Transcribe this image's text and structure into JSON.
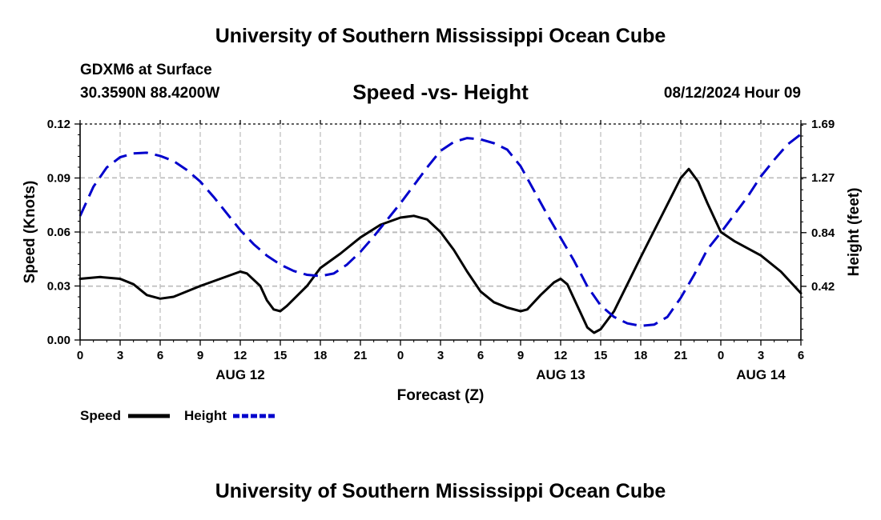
{
  "header": {
    "title": "University of Southern Mississippi Ocean Cube",
    "station": "GDXM6 at Surface",
    "coordinates": "30.3590N  88.4200W",
    "subtitle": "Speed -vs- Height",
    "datetime": "08/12/2024 Hour 09"
  },
  "footer": {
    "title": "University of Southern Mississippi Ocean Cube"
  },
  "chart_data": {
    "type": "line",
    "title": "Speed -vs- Height",
    "xlabel": "Forecast (Z)",
    "ylabel_left": "Speed (Knots)",
    "ylabel_right": "Height (feet)",
    "x_range_hours": [
      0,
      54
    ],
    "x_ticks": [
      {
        "h": 0,
        "label": "0"
      },
      {
        "h": 3,
        "label": "3"
      },
      {
        "h": 6,
        "label": "6"
      },
      {
        "h": 9,
        "label": "9"
      },
      {
        "h": 12,
        "label": "12"
      },
      {
        "h": 15,
        "label": "15"
      },
      {
        "h": 18,
        "label": "18"
      },
      {
        "h": 21,
        "label": "21"
      },
      {
        "h": 24,
        "label": "0"
      },
      {
        "h": 27,
        "label": "3"
      },
      {
        "h": 30,
        "label": "6"
      },
      {
        "h": 33,
        "label": "9"
      },
      {
        "h": 36,
        "label": "12"
      },
      {
        "h": 39,
        "label": "15"
      },
      {
        "h": 42,
        "label": "18"
      },
      {
        "h": 45,
        "label": "21"
      },
      {
        "h": 48,
        "label": "0"
      },
      {
        "h": 51,
        "label": "3"
      },
      {
        "h": 54,
        "label": "6"
      }
    ],
    "date_labels": [
      {
        "h": 12,
        "label": "AUG 12"
      },
      {
        "h": 36,
        "label": "AUG 13"
      },
      {
        "h": 51,
        "label": "AUG 14"
      }
    ],
    "ylim_left": [
      0,
      0.12
    ],
    "yticks_left": [
      "0.00",
      "0.03",
      "0.06",
      "0.09",
      "0.12"
    ],
    "ylim_right": [
      0,
      1.69
    ],
    "yticks_right": [
      "0.42",
      "0.84",
      "1.27",
      "1.69"
    ],
    "grid": true,
    "legend_position": "bottom-left",
    "series": [
      {
        "name": "Speed",
        "axis": "left",
        "color": "#000000",
        "style": "solid",
        "points": [
          [
            0,
            0.034
          ],
          [
            1.5,
            0.035
          ],
          [
            3,
            0.034
          ],
          [
            4,
            0.031
          ],
          [
            5,
            0.025
          ],
          [
            6,
            0.023
          ],
          [
            7,
            0.024
          ],
          [
            9,
            0.03
          ],
          [
            10.5,
            0.034
          ],
          [
            12,
            0.038
          ],
          [
            12.5,
            0.037
          ],
          [
            13.5,
            0.03
          ],
          [
            14,
            0.022
          ],
          [
            14.5,
            0.017
          ],
          [
            15,
            0.016
          ],
          [
            15.5,
            0.019
          ],
          [
            17,
            0.03
          ],
          [
            18,
            0.04
          ],
          [
            19.5,
            0.048
          ],
          [
            21,
            0.057
          ],
          [
            22.5,
            0.064
          ],
          [
            24,
            0.068
          ],
          [
            25,
            0.069
          ],
          [
            26,
            0.067
          ],
          [
            27,
            0.06
          ],
          [
            28,
            0.05
          ],
          [
            29,
            0.038
          ],
          [
            30,
            0.027
          ],
          [
            31,
            0.021
          ],
          [
            32,
            0.018
          ],
          [
            33,
            0.016
          ],
          [
            33.5,
            0.017
          ],
          [
            34.5,
            0.025
          ],
          [
            35.5,
            0.032
          ],
          [
            36,
            0.034
          ],
          [
            36.5,
            0.031
          ],
          [
            37.5,
            0.015
          ],
          [
            38,
            0.007
          ],
          [
            38.5,
            0.004
          ],
          [
            39,
            0.006
          ],
          [
            40,
            0.016
          ],
          [
            42,
            0.046
          ],
          [
            43.5,
            0.068
          ],
          [
            45,
            0.09
          ],
          [
            45.6,
            0.095
          ],
          [
            46.3,
            0.088
          ],
          [
            47,
            0.076
          ],
          [
            48,
            0.06
          ],
          [
            49,
            0.055
          ],
          [
            51,
            0.047
          ],
          [
            52.5,
            0.038
          ],
          [
            54,
            0.026
          ]
        ]
      },
      {
        "name": "Height",
        "axis": "right",
        "color": "#0000cc",
        "style": "dashed",
        "points": [
          [
            0,
            0.97
          ],
          [
            1,
            1.2
          ],
          [
            2,
            1.35
          ],
          [
            3,
            1.43
          ],
          [
            4,
            1.46
          ],
          [
            5,
            1.465
          ],
          [
            6,
            1.44
          ],
          [
            7,
            1.4
          ],
          [
            8,
            1.33
          ],
          [
            9,
            1.24
          ],
          [
            10,
            1.12
          ],
          [
            11,
            0.99
          ],
          [
            12,
            0.86
          ],
          [
            13,
            0.75
          ],
          [
            14,
            0.66
          ],
          [
            15,
            0.59
          ],
          [
            16,
            0.54
          ],
          [
            17,
            0.51
          ],
          [
            18,
            0.5
          ],
          [
            19,
            0.52
          ],
          [
            20,
            0.59
          ],
          [
            21,
            0.69
          ],
          [
            22,
            0.81
          ],
          [
            23,
            0.94
          ],
          [
            24,
            1.07
          ],
          [
            25,
            1.21
          ],
          [
            26,
            1.35
          ],
          [
            27,
            1.48
          ],
          [
            28,
            1.55
          ],
          [
            29,
            1.58
          ],
          [
            30,
            1.57
          ],
          [
            31,
            1.54
          ],
          [
            32,
            1.49
          ],
          [
            33,
            1.36
          ],
          [
            34,
            1.17
          ],
          [
            35,
            0.98
          ],
          [
            36,
            0.8
          ],
          [
            37,
            0.62
          ],
          [
            38,
            0.42
          ],
          [
            39,
            0.27
          ],
          [
            40,
            0.18
          ],
          [
            41,
            0.13
          ],
          [
            42,
            0.11
          ],
          [
            43,
            0.12
          ],
          [
            44,
            0.18
          ],
          [
            45,
            0.33
          ],
          [
            46,
            0.51
          ],
          [
            47,
            0.71
          ],
          [
            48,
            0.84
          ],
          [
            49,
            0.98
          ],
          [
            50,
            1.12
          ],
          [
            51,
            1.28
          ],
          [
            52,
            1.41
          ],
          [
            53,
            1.53
          ],
          [
            54,
            1.61
          ]
        ]
      }
    ]
  }
}
